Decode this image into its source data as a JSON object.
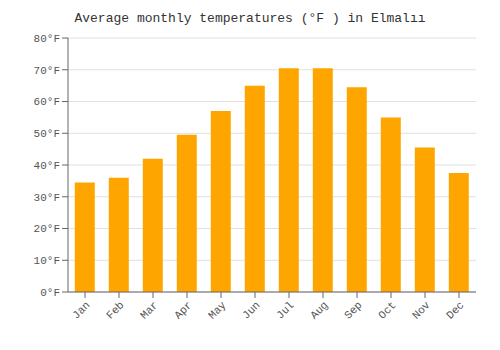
{
  "chart_data": {
    "type": "bar",
    "title": "Average monthly temperatures (°F ) in Elmalıı",
    "categories": [
      "Jan",
      "Feb",
      "Mar",
      "Apr",
      "May",
      "Jun",
      "Jul",
      "Aug",
      "Sep",
      "Oct",
      "Nov",
      "Dec"
    ],
    "values": [
      34.5,
      36.0,
      42.0,
      49.5,
      57.0,
      65.0,
      70.5,
      70.5,
      64.5,
      55.0,
      45.5,
      37.5
    ],
    "color": "#FFA500",
    "ylim": [
      0,
      80
    ],
    "yticks": [
      {
        "value": 0,
        "label": "0°F"
      },
      {
        "value": 10,
        "label": "10°F"
      },
      {
        "value": 20,
        "label": "20°F"
      },
      {
        "value": 30,
        "label": "30°F"
      },
      {
        "value": 40,
        "label": "40°F"
      },
      {
        "value": 50,
        "label": "50°F"
      },
      {
        "value": 60,
        "label": "60°F"
      },
      {
        "value": 70,
        "label": "70°F"
      },
      {
        "value": 80,
        "label": "80°F"
      }
    ],
    "grid": true
  }
}
